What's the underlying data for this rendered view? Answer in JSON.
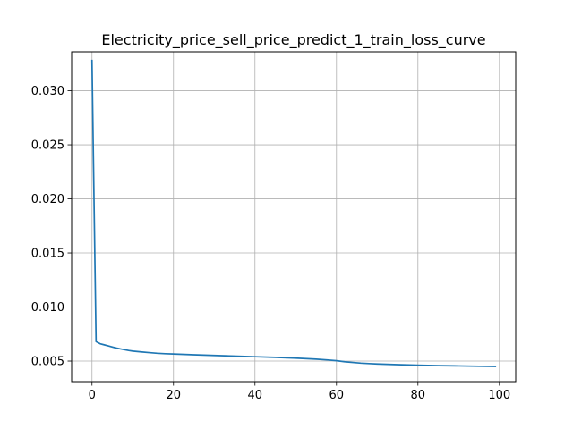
{
  "chart_data": {
    "type": "line",
    "title": "Electricity_price_sell_price_predict_1_train_loss_curve",
    "xlabel": "",
    "ylabel": "",
    "xlim": [
      -5,
      104
    ],
    "ylim": [
      0.0031,
      0.0336
    ],
    "grid": true,
    "x_ticks": [
      0,
      20,
      40,
      60,
      80,
      100
    ],
    "x_tick_labels": [
      "0",
      "20",
      "40",
      "60",
      "80",
      "100"
    ],
    "y_ticks": [
      0.005,
      0.01,
      0.015,
      0.02,
      0.025,
      0.03
    ],
    "y_tick_labels": [
      "0.005",
      "0.010",
      "0.015",
      "0.020",
      "0.025",
      "0.030"
    ],
    "series": [
      {
        "color": "#1f77b4",
        "x": [
          0,
          1,
          2,
          3,
          4,
          5,
          6,
          7,
          8,
          9,
          10,
          12,
          14,
          16,
          18,
          20,
          25,
          30,
          35,
          40,
          45,
          50,
          55,
          58,
          60,
          62,
          64,
          66,
          68,
          70,
          75,
          80,
          85,
          90,
          95,
          99
        ],
        "y": [
          0.0328,
          0.0068,
          0.0066,
          0.0065,
          0.0064,
          0.0063,
          0.0062,
          0.00612,
          0.00605,
          0.00598,
          0.00592,
          0.00585,
          0.00578,
          0.00572,
          0.00568,
          0.00565,
          0.00558,
          0.00552,
          0.00546,
          0.0054,
          0.00534,
          0.00527,
          0.00518,
          0.0051,
          0.00503,
          0.00494,
          0.00487,
          0.00481,
          0.00477,
          0.00473,
          0.00467,
          0.00462,
          0.00458,
          0.00455,
          0.00452,
          0.0045
        ]
      }
    ]
  }
}
